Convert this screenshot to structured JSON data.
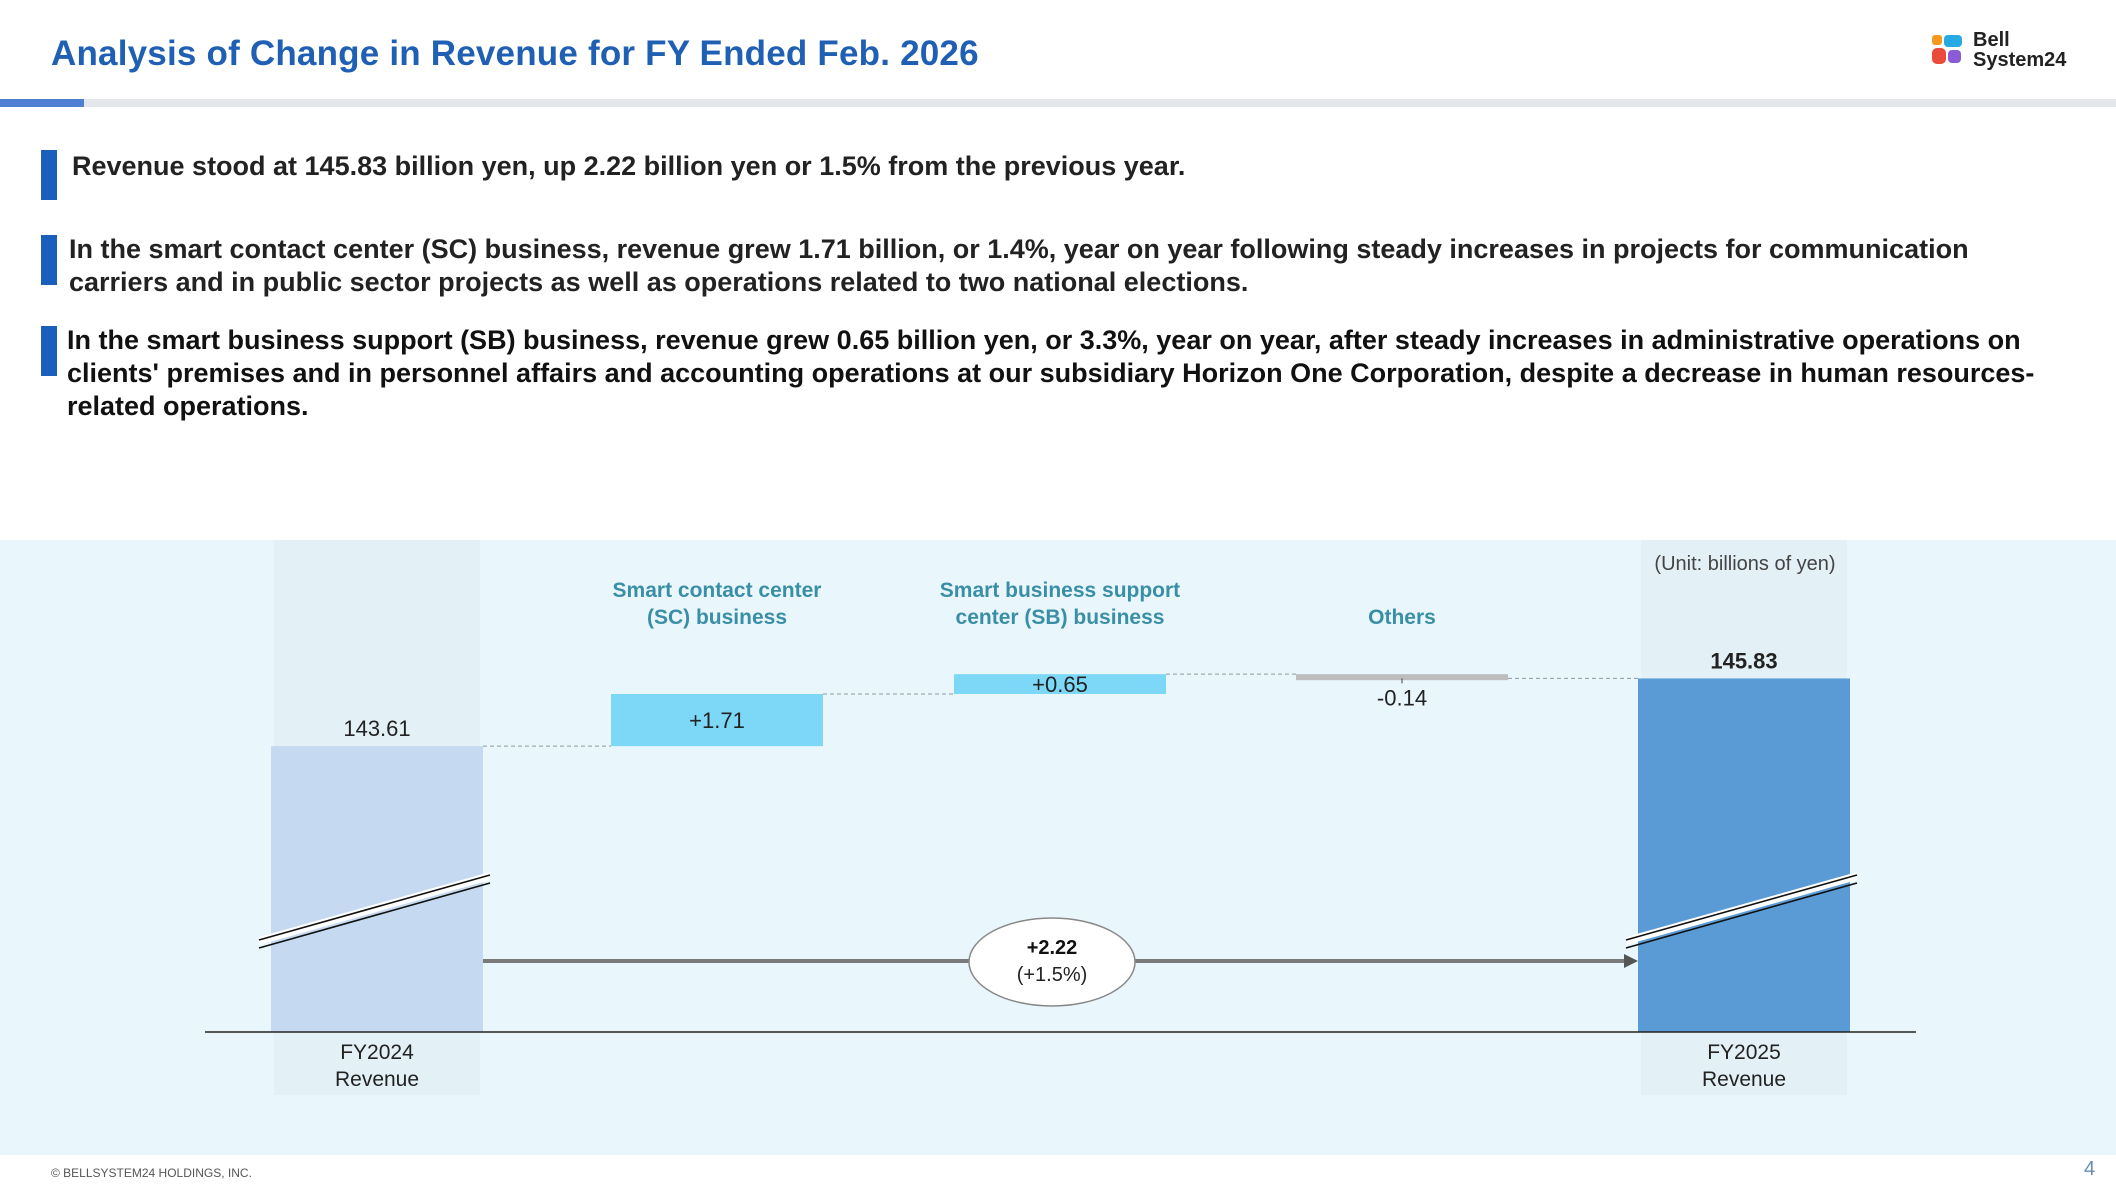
{
  "header": {
    "title": "Analysis of Change in Revenue for FY Ended Feb. 2026",
    "logo_line1": "Bell",
    "logo_line2": "System24"
  },
  "bullets": [
    "Revenue stood at 145.83 billion yen, up 2.22 billion yen or 1.5% from the previous year.",
    "In the smart contact center (SC) business, revenue grew 1.71 billion, or 1.4%, year on year following steady increases in projects for communication carriers and in public sector projects as well as operations related to two national elections.",
    "In the smart business support (SB) business, revenue grew 0.65 billion yen, or 3.3%, year on year, after steady increases in administrative operations on clients' premises and in personnel affairs and accounting operations at our subsidiary Horizon One Corporation, despite a decrease in human resources-related operations."
  ],
  "colors": {
    "title": "#1f5fb4",
    "accent": "#1a5fbd",
    "start_bar": "#c5daf1",
    "increase_bar": "#7dd8f7",
    "decrease_bar": "#bdbdbd",
    "end_bar": "#5b9bd5",
    "segment_label": "#3a8fa6",
    "chart_bg": "#e9f6fc"
  },
  "chart_data": {
    "type": "waterfall",
    "unit_note": "(Unit: billions of yen)",
    "categories": [
      "FY2024\nRevenue",
      "Smart contact center\n(SC) business",
      "Smart business support\ncenter (SB) business",
      "Others",
      "FY2025\nRevenue"
    ],
    "steps": [
      {
        "key": "start",
        "label_lines": [
          "FY2024",
          "Revenue"
        ],
        "value": 143.61,
        "value_label": "143.61",
        "kind": "total"
      },
      {
        "key": "sc",
        "label_lines": [
          "Smart contact center",
          "(SC) business"
        ],
        "value": 1.71,
        "value_label": "+1.71",
        "kind": "delta"
      },
      {
        "key": "sb",
        "label_lines": [
          "Smart business support",
          "center (SB) business"
        ],
        "value": 0.65,
        "value_label": "+0.65",
        "kind": "delta"
      },
      {
        "key": "others",
        "label_lines": [
          "Others"
        ],
        "value": -0.14,
        "value_label": "-0.14",
        "kind": "delta"
      },
      {
        "key": "end",
        "label_lines": [
          "FY2025",
          "Revenue"
        ],
        "value": 145.83,
        "value_label": "145.83",
        "kind": "total"
      }
    ],
    "total_change": {
      "value": 2.22,
      "label": "+2.22",
      "pct_label": "(+1.5%)"
    },
    "axis_break": true,
    "ylim": [
      142.5,
      146.5
    ]
  },
  "footer": {
    "copyright": "© BELLSYSTEM24 HOLDINGS, INC.",
    "page": "4"
  }
}
